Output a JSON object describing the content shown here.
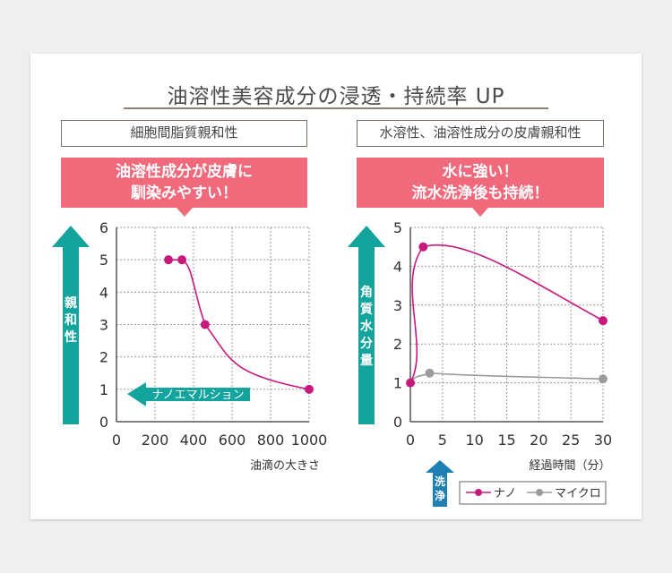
{
  "title": "油溶性美容成分の浸透・持続率 UP",
  "charts": {
    "left": {
      "header": "細胞間脂質親和性",
      "banner_line1": "油溶性成分が皮膚に",
      "banner_line2": "馴染みやすい！",
      "y_arrow_label": "親和性",
      "nano_label": "ナノエマルション",
      "xlabel": "油滴の大きさ"
    },
    "right": {
      "header": "水溶性、油溶性成分の皮膚親和性",
      "banner_line1": "水に強い！",
      "banner_line2": "流水洗浄後も持続！",
      "y_arrow_label": "角質水分量",
      "wash_label": "洗浄",
      "xlabel": "経過時間（分）"
    }
  },
  "colors": {
    "nano": "#c8197f",
    "micro": "#9b9b9b",
    "teal": "#13a59d",
    "pink": "#f06a7c",
    "wash": "#1e7fb5"
  },
  "chart_data": [
    {
      "type": "line",
      "xlabel": "油滴の大きさ",
      "ylabel": "親和性",
      "xlim": [
        0,
        1000
      ],
      "ylim": [
        0,
        6
      ],
      "xticks": [
        0,
        200,
        400,
        600,
        800,
        1000
      ],
      "yticks": [
        0,
        1,
        2,
        3,
        4,
        5,
        6
      ],
      "grid": true,
      "series": [
        {
          "name": "",
          "x": [
            270,
            340,
            460,
            1000
          ],
          "y": [
            5,
            5,
            3,
            1
          ]
        }
      ]
    },
    {
      "type": "line",
      "xlabel": "経過時間（分）",
      "ylabel": "角質水分量",
      "xlim": [
        0,
        30
      ],
      "ylim": [
        0,
        5
      ],
      "xticks": [
        0,
        5,
        10,
        15,
        20,
        25,
        30
      ],
      "yticks": [
        0,
        1,
        2,
        3,
        4,
        5
      ],
      "grid": true,
      "legend": "bottom",
      "series": [
        {
          "name": "ナノ",
          "x": [
            0,
            2,
            30
          ],
          "y": [
            1,
            4.5,
            2.6
          ]
        },
        {
          "name": "マイクロ",
          "x": [
            0,
            3,
            30
          ],
          "y": [
            1,
            1.25,
            1.1
          ]
        }
      ]
    }
  ]
}
